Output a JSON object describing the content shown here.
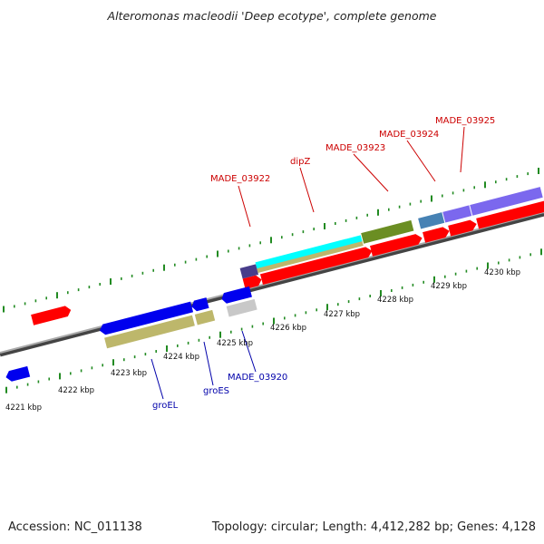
{
  "title": "Alteromonas macleodii 'Deep ecotype', complete genome",
  "footer": {
    "accession": "Accession: NC_011138",
    "topology": "Topology: circular; Length: 4,412,282 bp; Genes: 4,128"
  },
  "colors": {
    "red": "#ff0000",
    "blue": "#0000ee",
    "khaki": "#bdb76b",
    "gray": "#c8c8c8",
    "cyan": "#00ffff",
    "olive": "#6b8e23",
    "darkslate": "#483d8b",
    "steelblue": "#4682b4",
    "mediumpurple": "#7b68ee",
    "label_top": "#cc0000",
    "label_bottom": "#0000aa",
    "tick": "#228b22"
  },
  "scale_labels_bottom": [
    "4221 kbp",
    "4222 kbp",
    "4223 kbp",
    "4224 kbp",
    "4225 kbp",
    "4226 kbp",
    "4227 kbp",
    "4228 kbp",
    "4229 kbp",
    "4230 kbp"
  ],
  "gene_labels_top": [
    "MADE_03922",
    "dipZ",
    "MADE_03923",
    "MADE_03924",
    "MADE_03925"
  ],
  "gene_labels_bottom": [
    "groEL",
    "groES",
    "MADE_03920"
  ]
}
